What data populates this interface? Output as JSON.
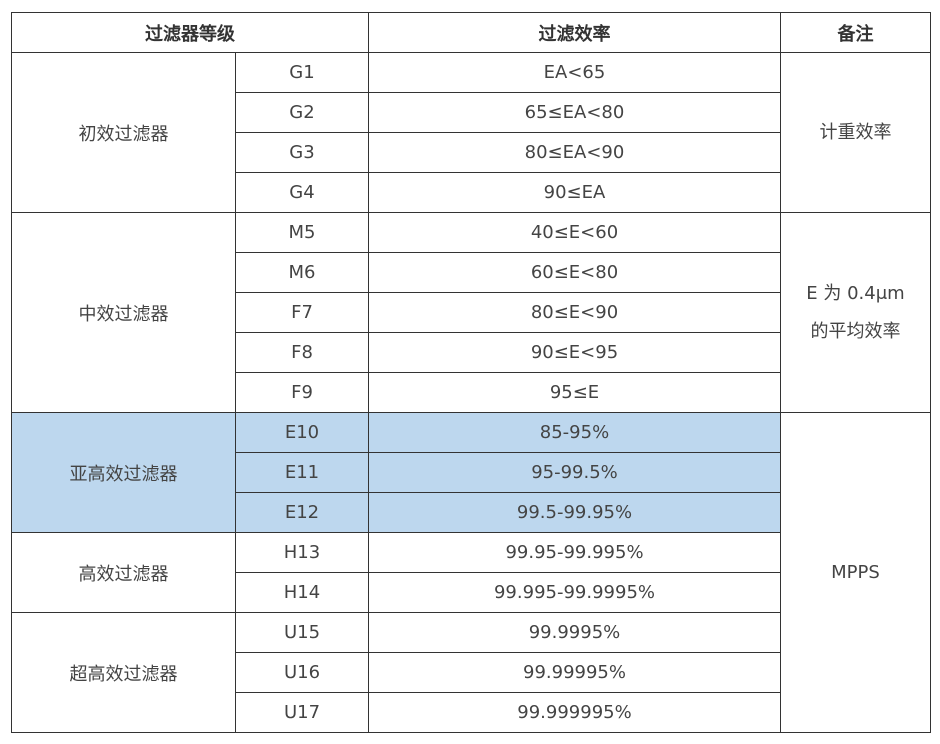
{
  "table": {
    "header": [
      "过滤器等级",
      "过滤效率",
      "备注"
    ],
    "highlight_color": "#bdd7ee",
    "groups": [
      {
        "name": "初效过滤器",
        "note": "计重效率",
        "rows": [
          {
            "grade": "G1",
            "efficiency": "EA<65"
          },
          {
            "grade": "G2",
            "efficiency": "65≤EA<80"
          },
          {
            "grade": "G3",
            "efficiency": "80≤EA<90"
          },
          {
            "grade": "G4",
            "efficiency": "90≤EA"
          }
        ]
      },
      {
        "name": "中效过滤器",
        "note": "E 为 0.4μm 的平均效率",
        "rows": [
          {
            "grade": "M5",
            "efficiency": "40≤E<60"
          },
          {
            "grade": "M6",
            "efficiency": "60≤E<80"
          },
          {
            "grade": "F7",
            "efficiency": "80≤E<90"
          },
          {
            "grade": "F8",
            "efficiency": "90≤E<95"
          },
          {
            "grade": "F9",
            "efficiency": "95≤E"
          }
        ]
      },
      {
        "name": "亚高效过滤器",
        "note": "MPPS",
        "highlight": true,
        "rows": [
          {
            "grade": "E10",
            "efficiency": "85-95%"
          },
          {
            "grade": "E11",
            "efficiency": "95-99.5%"
          },
          {
            "grade": "E12",
            "efficiency": "99.5-99.95%"
          }
        ]
      },
      {
        "name": "高效过滤器",
        "rows": [
          {
            "grade": "H13",
            "efficiency": "99.95-99.995%"
          },
          {
            "grade": "H14",
            "efficiency": "99.995-99.9995%"
          }
        ]
      },
      {
        "name": "超高效过滤器",
        "rows": [
          {
            "grade": "U15",
            "efficiency": "99.9995%"
          },
          {
            "grade": "U16",
            "efficiency": "99.99995%"
          },
          {
            "grade": "U17",
            "efficiency": "99.999995%"
          }
        ]
      }
    ]
  }
}
